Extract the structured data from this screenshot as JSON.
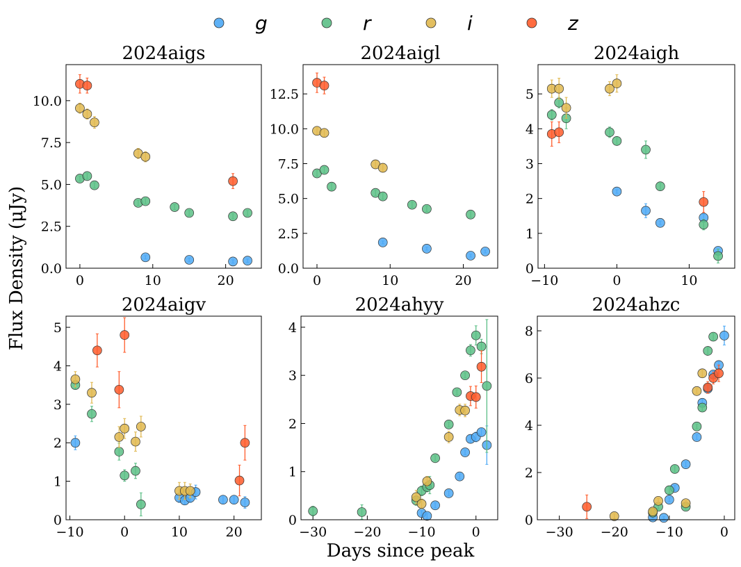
{
  "chart_data": {
    "type": "scatter",
    "xlabel": "Days since peak",
    "ylabel": "Flux Density (μJy)",
    "legend": {
      "placement": "top",
      "entries": [
        {
          "name": "g",
          "color": "#4da9f5"
        },
        {
          "name": "r",
          "color": "#5cbf86"
        },
        {
          "name": "i",
          "color": "#e0b84f"
        },
        {
          "name": "z",
          "color": "#ff5c2b"
        }
      ]
    },
    "panels": [
      {
        "title": "2024aigs",
        "xlim": [
          -1.9,
          24.9
        ],
        "ylim": [
          0,
          12.15
        ],
        "xticks": [
          0,
          10,
          20
        ],
        "xtick_labels": [
          "0",
          "10",
          "20"
        ],
        "yticks": [
          0,
          2.5,
          5,
          7.5,
          10
        ],
        "ytick_labels": [
          "0.0",
          "2.5",
          "5.0",
          "7.5",
          "10.0"
        ],
        "series": {
          "g": [
            [
              9,
              0.65,
              0.1
            ],
            [
              15,
              0.5,
              0.1
            ],
            [
              21,
              0.4,
              0.1
            ],
            [
              23,
              0.45,
              0.1
            ]
          ],
          "r": [
            [
              0,
              5.35,
              0.15
            ],
            [
              1,
              5.5,
              0.15
            ],
            [
              2,
              4.95,
              0.15
            ],
            [
              8,
              3.9,
              0.15
            ],
            [
              9,
              4.0,
              0.15
            ],
            [
              13,
              3.65,
              0.15
            ],
            [
              15,
              3.3,
              0.15
            ],
            [
              21,
              3.1,
              0.15
            ],
            [
              23,
              3.3,
              0.15
            ]
          ],
          "i": [
            [
              0,
              9.55,
              0.3
            ],
            [
              1,
              9.2,
              0.3
            ],
            [
              2,
              8.7,
              0.35
            ],
            [
              8,
              6.85,
              0.3
            ],
            [
              9,
              6.65,
              0.3
            ]
          ],
          "z": [
            [
              0,
              11.0,
              0.55
            ],
            [
              1,
              10.9,
              0.45
            ],
            [
              21,
              5.2,
              0.45
            ]
          ]
        }
      },
      {
        "title": "2024aigl",
        "xlim": [
          -1.9,
          24.7
        ],
        "ylim": [
          0,
          14.6
        ],
        "xticks": [
          0,
          10,
          20
        ],
        "xtick_labels": [
          "0",
          "10",
          "20"
        ],
        "yticks": [
          0,
          2.5,
          5,
          7.5,
          10,
          12.5
        ],
        "ytick_labels": [
          "0.0",
          "2.5",
          "5.0",
          "7.5",
          "10.0",
          "12.5"
        ],
        "series": {
          "g": [
            [
              9,
              1.85,
              0.1
            ],
            [
              15,
              1.4,
              0.1
            ],
            [
              21,
              0.9,
              0.1
            ],
            [
              23,
              1.2,
              0.1
            ]
          ],
          "r": [
            [
              0,
              6.8,
              0.2
            ],
            [
              1,
              7.05,
              0.2
            ],
            [
              2,
              5.85,
              0.25
            ],
            [
              8,
              5.4,
              0.2
            ],
            [
              9,
              5.15,
              0.2
            ],
            [
              13,
              4.55,
              0.2
            ],
            [
              15,
              4.25,
              0.2
            ],
            [
              21,
              3.85,
              0.2
            ]
          ],
          "i": [
            [
              0,
              9.85,
              0.3
            ],
            [
              1,
              9.7,
              0.3
            ],
            [
              8,
              7.45,
              0.3
            ],
            [
              9,
              7.2,
              0.3
            ]
          ],
          "z": [
            [
              0,
              13.3,
              0.7
            ],
            [
              1,
              13.1,
              0.6
            ]
          ]
        }
      },
      {
        "title": "2024aigh",
        "xlim": [
          -10.9,
          16.3
        ],
        "ylim": [
          0,
          5.84
        ],
        "xticks": [
          -10,
          0,
          10
        ],
        "xtick_labels": [
          "−10",
          "0",
          "10"
        ],
        "yticks": [
          0,
          1,
          2,
          3,
          4,
          5
        ],
        "ytick_labels": [
          "0",
          "1",
          "2",
          "3",
          "4",
          "5"
        ],
        "series": {
          "g": [
            [
              0,
              2.2,
              0.05
            ],
            [
              4,
              1.65,
              0.2
            ],
            [
              6,
              1.3,
              0.05
            ],
            [
              12,
              1.45,
              0.1
            ],
            [
              14,
              0.5,
              0.05
            ]
          ],
          "r": [
            [
              -9,
              4.4,
              0.15
            ],
            [
              -8,
              4.75,
              0.15
            ],
            [
              -7,
              4.3,
              0.3
            ],
            [
              -1,
              3.9,
              0.15
            ],
            [
              0,
              3.65,
              0.1
            ],
            [
              4,
              3.4,
              0.25
            ],
            [
              6,
              2.35,
              0.1
            ],
            [
              12,
              1.25,
              0.15
            ],
            [
              14,
              0.35,
              0.2
            ]
          ],
          "i": [
            [
              -9,
              5.15,
              0.25
            ],
            [
              -8,
              5.15,
              0.3
            ],
            [
              -7,
              4.6,
              0.3
            ],
            [
              -1,
              5.15,
              0.2
            ],
            [
              0,
              5.3,
              0.25
            ]
          ],
          "z": [
            [
              -9,
              3.85,
              0.35
            ],
            [
              -8,
              3.9,
              0.3
            ],
            [
              12,
              1.9,
              0.3
            ]
          ]
        }
      },
      {
        "title": "2024aigv",
        "xlim": [
          -10.7,
          25.0
        ],
        "ylim": [
          0,
          5.29
        ],
        "xticks": [
          -10,
          0,
          10,
          20
        ],
        "xtick_labels": [
          "−10",
          "0",
          "10",
          "20"
        ],
        "yticks": [
          0,
          1,
          2,
          3,
          4,
          5
        ],
        "ytick_labels": [
          "0",
          "1",
          "2",
          "3",
          "4",
          "5"
        ],
        "series": {
          "g": [
            [
              -9,
              2.0,
              0.18
            ],
            [
              10,
              0.57,
              0.12
            ],
            [
              11,
              0.5,
              0.1
            ],
            [
              12,
              0.57,
              0.12
            ],
            [
              13,
              0.72,
              0.18
            ],
            [
              18,
              0.52,
              0.1
            ],
            [
              20,
              0.52,
              0.1
            ],
            [
              22,
              0.45,
              0.15
            ]
          ],
          "r": [
            [
              -9,
              3.5,
              0.1
            ],
            [
              -6,
              2.75,
              0.2
            ],
            [
              -1,
              1.77,
              0.22
            ],
            [
              0,
              1.15,
              0.15
            ],
            [
              2,
              1.27,
              0.2
            ],
            [
              3,
              0.4,
              0.3
            ]
          ],
          "i": [
            [
              -9,
              3.65,
              0.2
            ],
            [
              -6,
              3.3,
              0.27
            ],
            [
              -1,
              2.15,
              0.27
            ],
            [
              0,
              2.37,
              0.26
            ],
            [
              2,
              2.03,
              0.25
            ],
            [
              3,
              2.42,
              0.27
            ],
            [
              10,
              0.75,
              0.22
            ],
            [
              11,
              0.75,
              0.22
            ],
            [
              12,
              0.75,
              0.18
            ]
          ],
          "z": [
            [
              -5,
              4.4,
              0.43
            ],
            [
              0,
              4.8,
              0.45
            ],
            [
              -1,
              3.38,
              0.47
            ],
            [
              21,
              1.02,
              0.4
            ],
            [
              22,
              2.0,
              0.45
            ]
          ]
        }
      },
      {
        "title": "2024ahyy",
        "xlim": [
          -32.2,
          4.0
        ],
        "ylim": [
          0,
          4.23
        ],
        "xticks": [
          -30,
          -20,
          -10,
          0
        ],
        "xtick_labels": [
          "−30",
          "−20",
          "−10",
          "0"
        ],
        "yticks": [
          0,
          1,
          2,
          3,
          4
        ],
        "ytick_labels": [
          "0",
          "1",
          "2",
          "3",
          "4"
        ],
        "series": {
          "g": [
            [
              -10,
              0.14,
              0.05
            ],
            [
              -9,
              0.08,
              0.05
            ],
            [
              -7.5,
              0.3,
              0.05
            ],
            [
              -5,
              0.55,
              0.05
            ],
            [
              -3,
              0.9,
              0.05
            ],
            [
              -2,
              1.4,
              0.05
            ],
            [
              -1,
              1.68,
              0.08
            ],
            [
              0,
              1.72,
              0.1
            ],
            [
              1,
              1.82,
              0.08
            ],
            [
              2,
              1.55,
              0.4
            ]
          ],
          "r": [
            [
              -30,
              0.18,
              0.1
            ],
            [
              -21,
              0.16,
              0.15
            ],
            [
              -11,
              0.4,
              0.1
            ],
            [
              -10,
              0.6,
              0.1
            ],
            [
              -9,
              0.68,
              0.1
            ],
            [
              -8.5,
              0.72,
              0.18
            ],
            [
              -7.5,
              1.28,
              0.05
            ],
            [
              -5,
              1.98,
              0.05
            ],
            [
              -3.5,
              2.65,
              0.05
            ],
            [
              -2,
              3.0,
              0.05
            ],
            [
              -1,
              3.52,
              0.12
            ],
            [
              0,
              3.83,
              0.2
            ],
            [
              1,
              3.6,
              0.15
            ],
            [
              2,
              2.78,
              1.38
            ]
          ],
          "i": [
            [
              -11,
              0.47,
              0.14
            ],
            [
              -10,
              0.33,
              0.1
            ],
            [
              -9,
              0.8,
              0.1
            ],
            [
              -5,
              1.72,
              0.12
            ],
            [
              -3,
              2.28,
              0.12
            ],
            [
              -2,
              2.27,
              0.13
            ]
          ],
          "z": [
            [
              -1,
              2.57,
              0.2
            ],
            [
              0,
              2.55,
              0.23
            ],
            [
              1,
              3.18,
              0.33
            ]
          ]
        }
      },
      {
        "title": "2024ahzc",
        "xlim": [
          -34.0,
          1.9
        ],
        "ylim": [
          0,
          8.62
        ],
        "xticks": [
          -30,
          -20,
          -10,
          0
        ],
        "xtick_labels": [
          "−30",
          "−20",
          "−10",
          "0"
        ],
        "yticks": [
          0,
          2,
          4,
          6,
          8
        ],
        "ytick_labels": [
          "0",
          "2",
          "4",
          "6",
          "8"
        ],
        "series": {
          "g": [
            [
              -13,
              0.1,
              0.05
            ],
            [
              -11,
              0.08,
              0.05
            ],
            [
              -10,
              0.85,
              0.08
            ],
            [
              -9,
              1.35,
              0.1
            ],
            [
              -7,
              2.35,
              0.1
            ],
            [
              -5,
              3.5,
              0.1
            ],
            [
              -4,
              4.95,
              0.15
            ],
            [
              -3,
              5.55,
              0.15
            ],
            [
              -2,
              6.15,
              0.15
            ],
            [
              -1,
              6.55,
              0.15
            ],
            [
              0,
              7.8,
              0.4
            ]
          ],
          "r": [
            [
              -13,
              0.3,
              0.1
            ],
            [
              -12,
              0.55,
              0.1
            ],
            [
              -10,
              1.25,
              0.15
            ],
            [
              -9,
              2.15,
              0.15
            ],
            [
              -7,
              0.55,
              0.1
            ],
            [
              -5,
              3.95,
              0.1
            ],
            [
              -4,
              4.75,
              0.15
            ],
            [
              -3,
              7.15,
              0.15
            ],
            [
              -2,
              7.75,
              0.15
            ]
          ],
          "i": [
            [
              -20,
              0.15,
              0.1
            ],
            [
              -13,
              0.35,
              0.1
            ],
            [
              -12,
              0.8,
              0.1
            ],
            [
              -7,
              0.7,
              0.1
            ],
            [
              -5,
              5.45,
              0.1
            ],
            [
              -4,
              6.2,
              0.15
            ]
          ],
          "z": [
            [
              -25,
              0.55,
              0.5
            ],
            [
              -3,
              5.6,
              0.25
            ],
            [
              -2,
              6.0,
              0.25
            ],
            [
              -1,
              6.2,
              0.35
            ]
          ]
        }
      }
    ]
  }
}
